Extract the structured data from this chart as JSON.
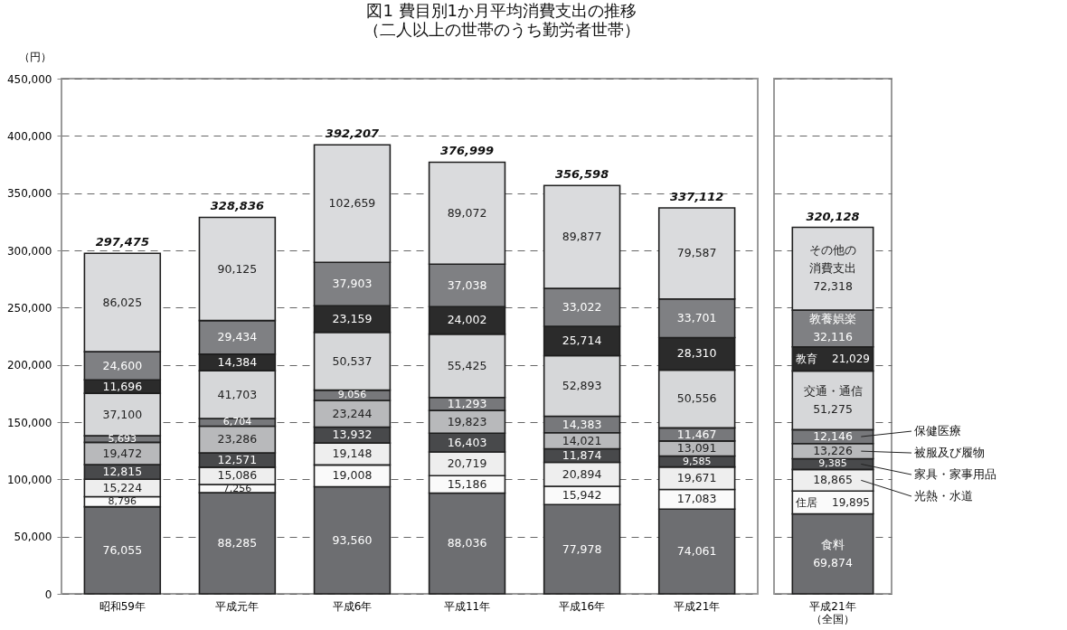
{
  "chart_data": [
    {
      "type": "bar",
      "stacked": true,
      "title": "図1 費目別1か月平均消費支出の推移",
      "subtitle": "（二人以上の世帯のうち勤労者世帯）",
      "ylabel": "（円）",
      "categories": [
        "昭和59年",
        "平成元年",
        "平成6年",
        "平成11年",
        "平成16年",
        "平成21年"
      ],
      "series": [
        {
          "color": "#6d6e71",
          "values": [
            76055,
            88285,
            93560,
            88036,
            77978,
            74061
          ],
          "value_labels": [
            "76,055",
            "88,285",
            "93,560",
            "88,036",
            "77,978",
            "74,061"
          ]
        },
        {
          "color": "#fafafa",
          "values": [
            8796,
            7256,
            19008,
            15186,
            15942,
            17083
          ],
          "value_labels": [
            "8,796",
            "7,256",
            "19,008",
            "15,186",
            "15,942",
            "17,083"
          ]
        },
        {
          "color": "#eeeeee",
          "values": [
            15224,
            15086,
            19148,
            20719,
            20894,
            19671
          ],
          "value_labels": [
            "15,224",
            "15,086",
            "19,148",
            "20,719",
            "20,894",
            "19,671"
          ]
        },
        {
          "color": "#48494b",
          "values": [
            12815,
            12571,
            13932,
            16403,
            11874,
            9585
          ],
          "value_labels": [
            "12,815",
            "12,571",
            "13,932",
            "16,403",
            "11,874",
            "9,585"
          ]
        },
        {
          "color": "#b8b9bb",
          "values": [
            19472,
            23286,
            23244,
            19823,
            14021,
            13091
          ],
          "value_labels": [
            "19,472",
            "23,286",
            "23,244",
            "19,823",
            "14,021",
            "13,091"
          ]
        },
        {
          "color": "#77787b",
          "values": [
            5693,
            6704,
            9056,
            11293,
            14383,
            11467
          ],
          "value_labels": [
            "5,693",
            "6,704",
            "9,056",
            "11,293",
            "14,383",
            "11,467"
          ]
        },
        {
          "color": "#d6d7d9",
          "values": [
            37100,
            41703,
            50537,
            55425,
            52893,
            50556
          ],
          "value_labels": [
            "37,100",
            "41,703",
            "50,537",
            "55,425",
            "52,893",
            "50,556"
          ]
        },
        {
          "color": "#2b2b2b",
          "values": [
            11696,
            14384,
            23159,
            24002,
            25714,
            28310
          ],
          "value_labels": [
            "11,696",
            "14,384",
            "23,159",
            "24,002",
            "25,714",
            "28,310"
          ]
        },
        {
          "color": "#7f8083",
          "values": [
            24600,
            29434,
            37903,
            37038,
            33022,
            33701
          ],
          "value_labels": [
            "24,600",
            "29,434",
            "37,903",
            "37,038",
            "33,022",
            "33,701"
          ]
        },
        {
          "color": "#dadbdd",
          "values": [
            86025,
            90125,
            102659,
            89072,
            89877,
            79587
          ],
          "value_labels": [
            "86,025",
            "90,125",
            "102,659",
            "89,072",
            "89,877",
            "79,587"
          ]
        }
      ],
      "ylim": [
        0,
        450000
      ],
      "yticks": [
        {
          "value": 0,
          "label": "0"
        },
        {
          "value": 50000,
          "label": "50,000"
        },
        {
          "value": 100000,
          "label": "100,000"
        },
        {
          "value": 150000,
          "label": "150,000"
        },
        {
          "value": 200000,
          "label": "200,000"
        },
        {
          "value": 250000,
          "label": "250,000"
        },
        {
          "value": 300000,
          "label": "300,000"
        },
        {
          "value": 350000,
          "label": "350,000"
        },
        {
          "value": 400000,
          "label": "400,000"
        },
        {
          "value": 450000,
          "label": "450,000"
        }
      ],
      "grid": "y",
      "totals": [
        "297,475",
        "328,836",
        "392,207",
        "376,999",
        "356,598",
        "337,112"
      ]
    },
    {
      "type": "bar",
      "stacked": true,
      "categories": [
        "平成21年（全国）"
      ],
      "series": [
        {
          "name": "食料",
          "color": "#6d6e71",
          "values": [
            69874
          ],
          "value_labels": [
            "69,874"
          ]
        },
        {
          "name": "住居",
          "color": "#fafafa",
          "values": [
            19895
          ],
          "value_labels": [
            "19,895"
          ]
        },
        {
          "name": "光熱・水道",
          "color": "#eeeeee",
          "values": [
            18865
          ],
          "value_labels": [
            "18,865"
          ]
        },
        {
          "name": "家具・家事用品",
          "color": "#48494b",
          "values": [
            9385
          ],
          "value_labels": [
            "9,385"
          ]
        },
        {
          "name": "被服及び履物",
          "color": "#b8b9bb",
          "values": [
            13226
          ],
          "value_labels": [
            "13,226"
          ]
        },
        {
          "name": "保健医療",
          "color": "#77787b",
          "values": [
            12146
          ],
          "value_labels": [
            "12,146"
          ]
        },
        {
          "name": "交通・通信",
          "color": "#d6d7d9",
          "values": [
            51275
          ],
          "value_labels": [
            "51,275"
          ]
        },
        {
          "name": "教育",
          "color": "#2b2b2b",
          "values": [
            21029
          ],
          "value_labels": [
            "21,029"
          ]
        },
        {
          "name": "教養娯楽",
          "color": "#7f8083",
          "values": [
            32116
          ],
          "value_labels": [
            "32,116"
          ]
        },
        {
          "name": "その他の消費支出",
          "color": "#dadbdd",
          "values": [
            72318
          ],
          "value_labels": [
            "72,318"
          ]
        }
      ],
      "ylim": [
        0,
        450000
      ],
      "yticks": [
        0,
        50000,
        100000,
        150000,
        200000,
        250000,
        300000,
        350000,
        400000,
        450000
      ],
      "grid": "y",
      "tick_labels": "x",
      "legend": "right",
      "totals": [
        "320,128"
      ]
    }
  ]
}
